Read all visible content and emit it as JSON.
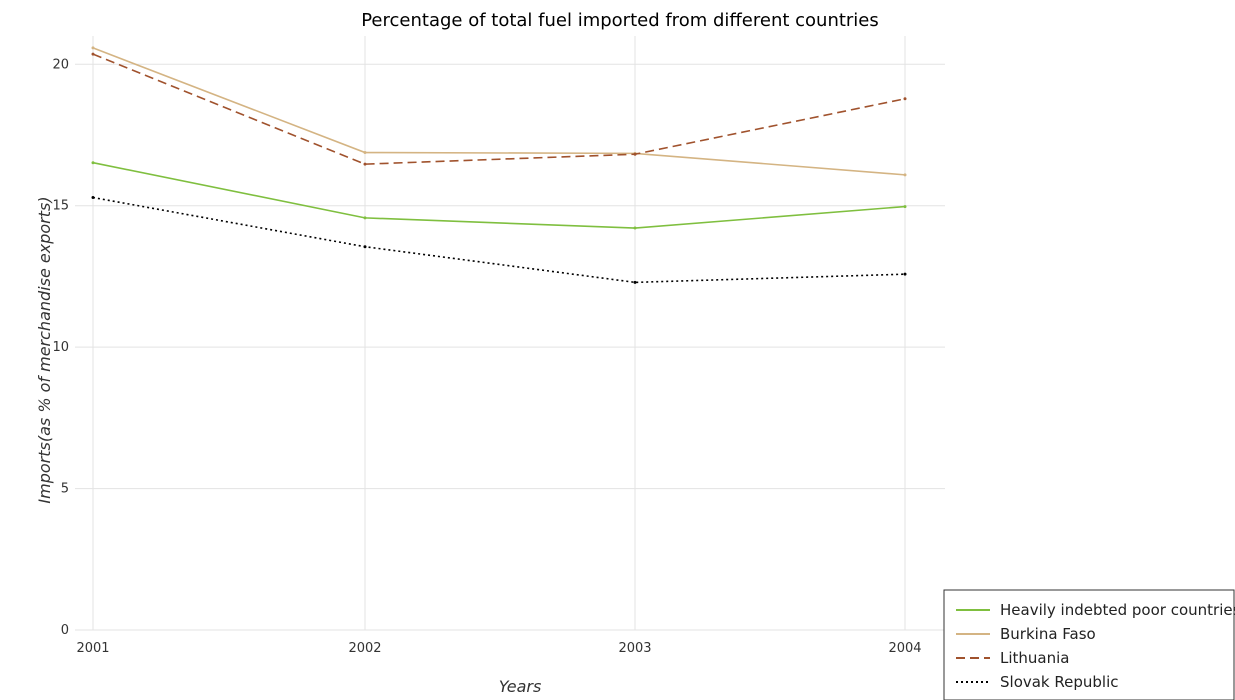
{
  "chart_data": {
    "type": "line",
    "title": "Percentage of total fuel imported from different countries",
    "xlabel": "Years",
    "ylabel": "Imports(as % of merchandise exports)",
    "x": [
      "2001",
      "2002",
      "2003",
      "2004"
    ],
    "ylim": [
      0,
      21
    ],
    "yticks": [
      "0",
      "5",
      "10",
      "15",
      "20"
    ],
    "grid": true,
    "legend_position": "bottom-right",
    "series": [
      {
        "name": "Heavily indebted poor countries",
        "color": "#7fbf3f",
        "dash": "solid",
        "values": [
          16.52,
          14.57,
          14.21,
          14.97
        ]
      },
      {
        "name": "Burkina Faso",
        "color": "#d4b483",
        "dash": "solid",
        "values": [
          20.58,
          16.88,
          16.85,
          16.09
        ]
      },
      {
        "name": "Lithuania",
        "color": "#a0522d",
        "dash": "dashed",
        "values": [
          20.36,
          16.47,
          16.82,
          18.78
        ]
      },
      {
        "name": "Slovak Republic",
        "color": "#000000",
        "dash": "dotted",
        "values": [
          15.29,
          13.55,
          12.29,
          12.58
        ]
      }
    ]
  }
}
